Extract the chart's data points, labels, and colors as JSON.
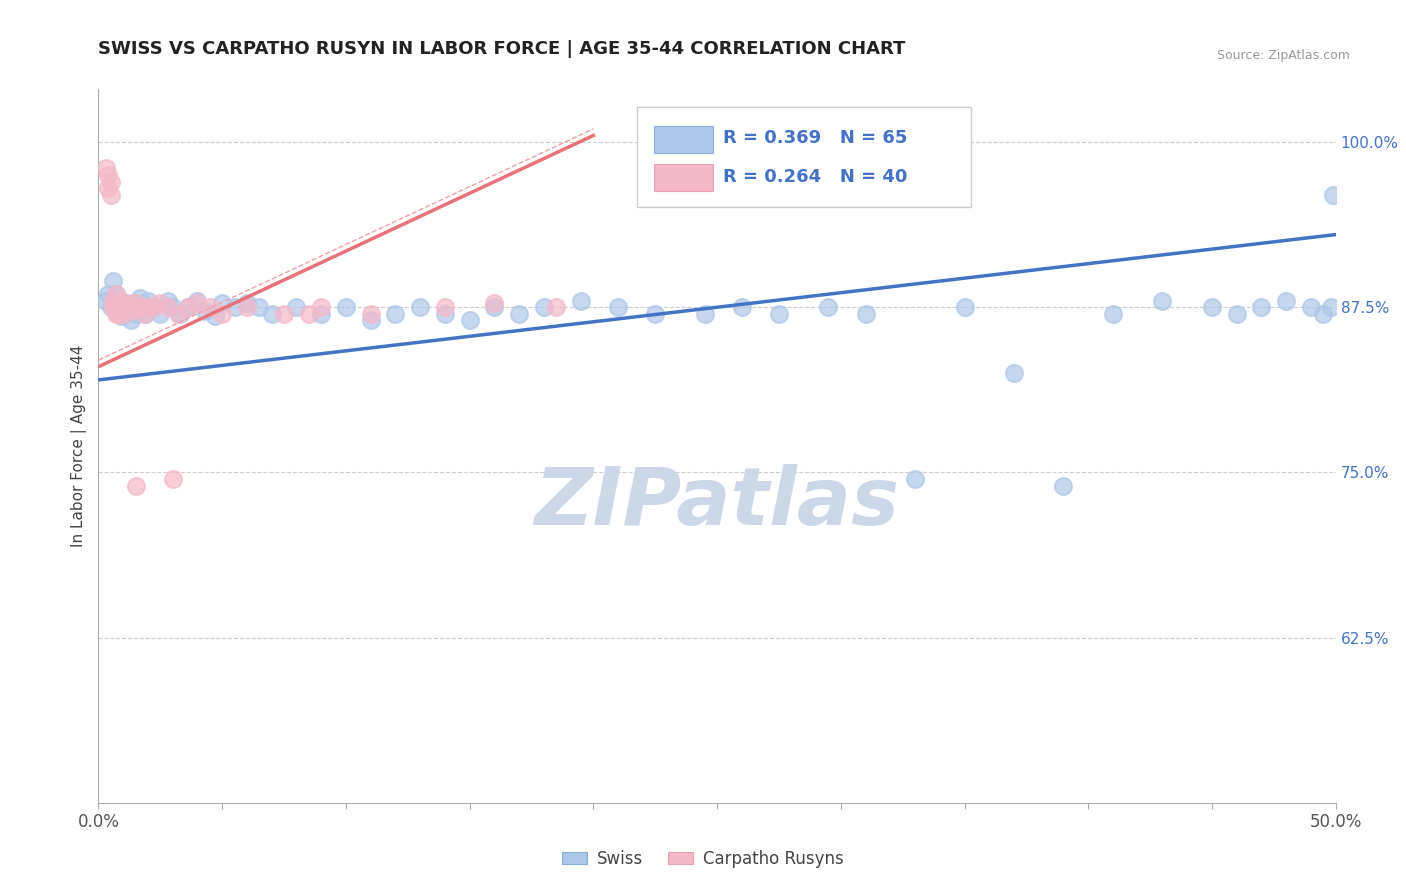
{
  "title": "SWISS VS CARPATHO RUSYN IN LABOR FORCE | AGE 35-44 CORRELATION CHART",
  "source": "Source: ZipAtlas.com",
  "ylabel": "In Labor Force | Age 35-44",
  "xlim": [
    0.0,
    0.5
  ],
  "ylim": [
    0.5,
    1.04
  ],
  "xticks": [
    0.0,
    0.05,
    0.1,
    0.15,
    0.2,
    0.25,
    0.3,
    0.35,
    0.4,
    0.45,
    0.5
  ],
  "xtick_labels_show": [
    "0.0%",
    "",
    "",
    "",
    "",
    "",
    "",
    "",
    "",
    "",
    "50.0%"
  ],
  "ytick_vals_right": [
    1.0,
    0.875,
    0.75,
    0.625
  ],
  "ytick_labels_right": [
    "100.0%",
    "87.5%",
    "75.0%",
    "62.5%"
  ],
  "legend_swiss_R": "0.369",
  "legend_swiss_N": "65",
  "legend_carpatho_R": "0.264",
  "legend_carpatho_N": "40",
  "swiss_color": "#aec6e8",
  "carpatho_color": "#f4b8c8",
  "swiss_line_color": "#4472c4",
  "carpatho_line_color": "#e8727a",
  "carpatho_line_dashed_color": "#f0a0a8",
  "grid_color": "#cccccc",
  "watermark_color": "#ccd8e8",
  "background_color": "#ffffff",
  "swiss_x": [
    0.003,
    0.004,
    0.005,
    0.006,
    0.007,
    0.008,
    0.009,
    0.01,
    0.011,
    0.012,
    0.013,
    0.014,
    0.015,
    0.016,
    0.017,
    0.018,
    0.019,
    0.02,
    0.022,
    0.025,
    0.028,
    0.03,
    0.033,
    0.036,
    0.04,
    0.043,
    0.047,
    0.05,
    0.055,
    0.06,
    0.065,
    0.07,
    0.08,
    0.09,
    0.1,
    0.11,
    0.12,
    0.13,
    0.14,
    0.15,
    0.16,
    0.17,
    0.18,
    0.195,
    0.21,
    0.225,
    0.245,
    0.26,
    0.275,
    0.295,
    0.31,
    0.33,
    0.35,
    0.37,
    0.39,
    0.41,
    0.43,
    0.45,
    0.46,
    0.47,
    0.48,
    0.49,
    0.495,
    0.498,
    0.499
  ],
  "swiss_y": [
    0.88,
    0.885,
    0.875,
    0.895,
    0.885,
    0.872,
    0.868,
    0.878,
    0.875,
    0.872,
    0.865,
    0.878,
    0.87,
    0.875,
    0.882,
    0.875,
    0.87,
    0.88,
    0.875,
    0.87,
    0.88,
    0.875,
    0.87,
    0.875,
    0.88,
    0.872,
    0.868,
    0.878,
    0.875,
    0.878,
    0.875,
    0.87,
    0.875,
    0.87,
    0.875,
    0.865,
    0.87,
    0.875,
    0.87,
    0.865,
    0.875,
    0.87,
    0.875,
    0.88,
    0.875,
    0.87,
    0.87,
    0.875,
    0.87,
    0.875,
    0.87,
    0.745,
    0.875,
    0.825,
    0.74,
    0.87,
    0.88,
    0.875,
    0.87,
    0.875,
    0.88,
    0.875,
    0.87,
    0.875,
    0.96
  ],
  "carpatho_x": [
    0.003,
    0.004,
    0.004,
    0.005,
    0.005,
    0.006,
    0.006,
    0.007,
    0.007,
    0.008,
    0.008,
    0.009,
    0.009,
    0.01,
    0.01,
    0.011,
    0.012,
    0.013,
    0.015,
    0.017,
    0.019,
    0.022,
    0.025,
    0.028,
    0.032,
    0.036,
    0.04,
    0.045,
    0.05,
    0.06,
    0.075,
    0.09,
    0.11,
    0.14,
    0.16,
    0.185,
    0.085,
    0.02,
    0.03,
    0.015
  ],
  "carpatho_y": [
    0.98,
    0.975,
    0.965,
    0.97,
    0.96,
    0.88,
    0.875,
    0.885,
    0.87,
    0.875,
    0.87,
    0.88,
    0.875,
    0.87,
    0.875,
    0.878,
    0.875,
    0.872,
    0.878,
    0.875,
    0.87,
    0.875,
    0.878,
    0.875,
    0.87,
    0.875,
    0.878,
    0.875,
    0.87,
    0.875,
    0.87,
    0.875,
    0.87,
    0.875,
    0.878,
    0.875,
    0.87,
    0.875,
    0.745,
    0.74
  ],
  "swiss_trendline": [
    0.0,
    0.5,
    0.82,
    0.93
  ],
  "carpatho_trendline": [
    0.0,
    0.2,
    0.83,
    1.005
  ],
  "carpatho_trendline_dashed": [
    0.0,
    0.2,
    0.83,
    1.005
  ]
}
